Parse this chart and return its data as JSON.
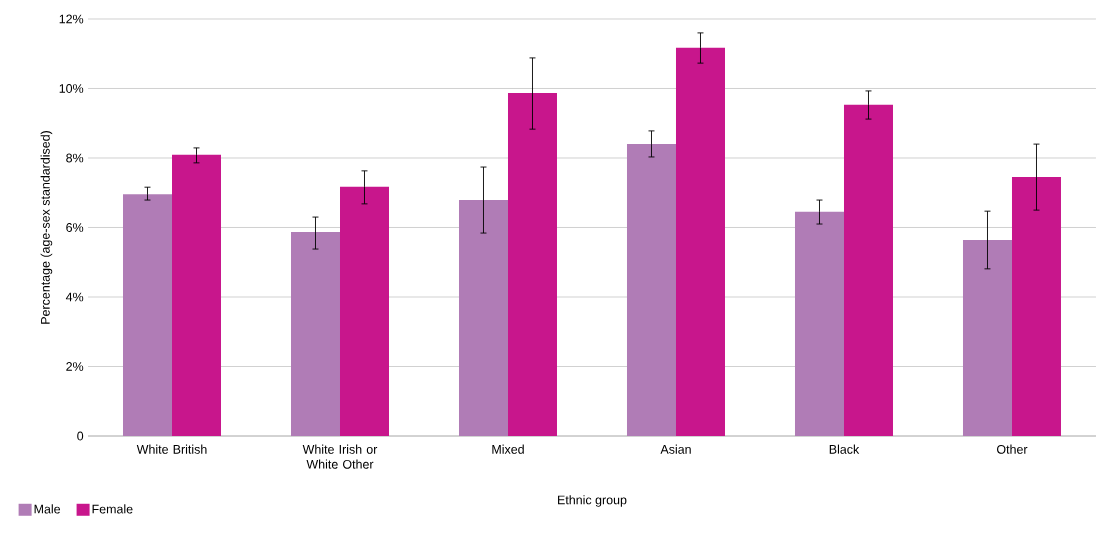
{
  "chart_data": {
    "type": "bar",
    "xlabel": "Ethnic group",
    "ylabel": "Percentage (age-sex standardised)",
    "categories": [
      "White British",
      "White Irish or White Other",
      "Mixed",
      "Asian",
      "Black",
      "Other"
    ],
    "series": [
      {
        "name": "Male",
        "color": "#b07cb6",
        "values": [
          6.96,
          5.87,
          6.79,
          8.4,
          6.45,
          5.64
        ],
        "errors": [
          [
            6.79,
            7.16
          ],
          [
            5.38,
            6.3
          ],
          [
            5.84,
            7.74
          ],
          [
            8.03,
            8.78
          ],
          [
            6.1,
            6.79
          ],
          [
            4.81,
            6.47
          ]
        ]
      },
      {
        "name": "Female",
        "color": "#c8168c",
        "values": [
          8.09,
          7.17,
          9.87,
          11.17,
          9.53,
          7.45
        ],
        "errors": [
          [
            7.86,
            8.29
          ],
          [
            6.68,
            7.63
          ],
          [
            8.83,
            10.88
          ],
          [
            10.73,
            11.6
          ],
          [
            9.12,
            9.93
          ],
          [
            6.5,
            8.4
          ]
        ]
      }
    ],
    "ylim": [
      0,
      12
    ],
    "yticks": [
      0,
      {
        "value": 2,
        "label": "2%"
      },
      {
        "value": 4,
        "label": "4%"
      },
      {
        "value": 6,
        "label": "6%"
      },
      {
        "value": 8,
        "label": "8%"
      },
      {
        "value": 10,
        "label": "10%"
      },
      {
        "value": 12,
        "label": "12%"
      }
    ],
    "grid": "y",
    "legend": "bottom left"
  }
}
